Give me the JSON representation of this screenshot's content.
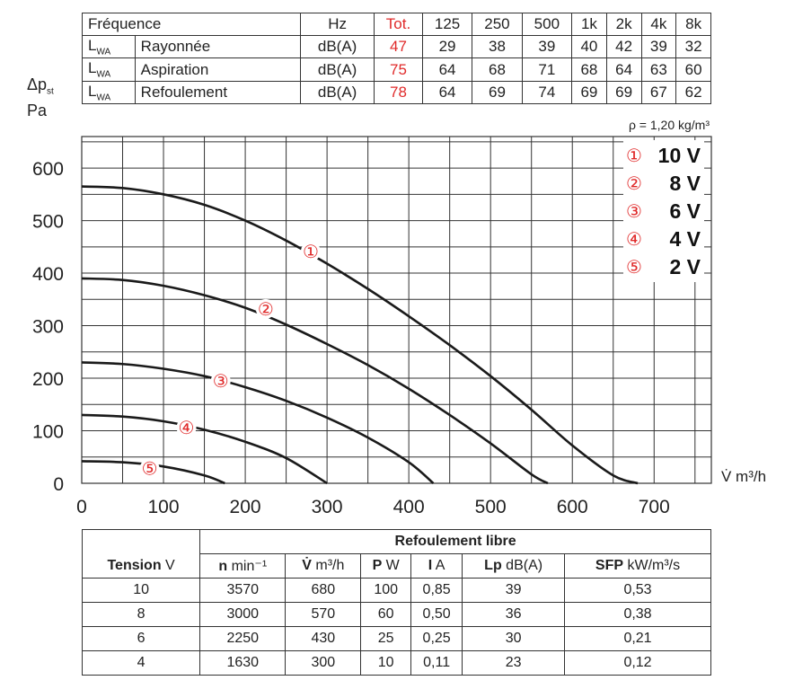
{
  "top_table": {
    "header": {
      "label": "Fréquence",
      "unit": "Hz",
      "total": "Tot.",
      "bands": [
        "125",
        "250",
        "500",
        "1k",
        "2k",
        "4k",
        "8k"
      ]
    },
    "rows": [
      {
        "sym": "L",
        "sub": "WA",
        "name": "Rayonnée",
        "unit": "dB(A)",
        "total": "47",
        "values": [
          "29",
          "38",
          "39",
          "40",
          "42",
          "39",
          "32"
        ]
      },
      {
        "sym": "L",
        "sub": "WA",
        "name": "Aspiration",
        "unit": "dB(A)",
        "total": "75",
        "values": [
          "64",
          "68",
          "71",
          "68",
          "64",
          "63",
          "60"
        ]
      },
      {
        "sym": "L",
        "sub": "WA",
        "name": "Refoulement",
        "unit": "dB(A)",
        "total": "78",
        "values": [
          "64",
          "69",
          "74",
          "69",
          "69",
          "67",
          "62"
        ]
      }
    ]
  },
  "y_unit": {
    "symbol": "Δp",
    "sub": "st",
    "unit": "Pa"
  },
  "density_note": "ρ = 1,20 kg/m³",
  "chart_data": {
    "type": "line",
    "xlabel": "V̇ m³/h",
    "ylabel": "Δpst Pa",
    "xlim": [
      0,
      770
    ],
    "ylim": [
      0,
      660
    ],
    "x_ticks": [
      0,
      100,
      200,
      300,
      400,
      500,
      600,
      700
    ],
    "y_ticks": [
      0,
      100,
      200,
      300,
      400,
      500,
      600
    ],
    "grid": true,
    "legend_position": "top-right",
    "series": [
      {
        "name": "10 V",
        "marker": "①",
        "x": [
          0,
          50,
          100,
          150,
          200,
          250,
          300,
          350,
          400,
          450,
          500,
          550,
          600,
          650,
          680
        ],
        "y": [
          565,
          562,
          550,
          530,
          500,
          462,
          418,
          370,
          318,
          263,
          204,
          140,
          72,
          15,
          0
        ]
      },
      {
        "name": "8 V",
        "marker": "②",
        "x": [
          0,
          50,
          100,
          150,
          200,
          250,
          300,
          350,
          400,
          450,
          500,
          550,
          570
        ],
        "y": [
          390,
          387,
          376,
          358,
          334,
          302,
          265,
          225,
          180,
          130,
          76,
          17,
          0
        ]
      },
      {
        "name": "6 V",
        "marker": "③",
        "x": [
          0,
          50,
          100,
          150,
          200,
          250,
          300,
          350,
          400,
          430
        ],
        "y": [
          230,
          227,
          218,
          204,
          183,
          157,
          125,
          87,
          40,
          0
        ]
      },
      {
        "name": "4 V",
        "marker": "④",
        "x": [
          0,
          50,
          100,
          150,
          200,
          250,
          300
        ],
        "y": [
          130,
          127,
          118,
          102,
          79,
          48,
          0
        ]
      },
      {
        "name": "2 V",
        "marker": "⑤",
        "x": [
          0,
          50,
          100,
          150,
          175
        ],
        "y": [
          42,
          40,
          32,
          15,
          0
        ]
      }
    ]
  },
  "bottom_table": {
    "title": "Refoulement libre",
    "columns": [
      {
        "bold": "Tension",
        "unit": " V"
      },
      {
        "bold": "n",
        "unit": " min⁻¹"
      },
      {
        "bold": "V̇",
        "unit": " m³/h"
      },
      {
        "bold": "P",
        "unit": " W"
      },
      {
        "bold": "I",
        "unit": " A"
      },
      {
        "bold": "Lp",
        "unit": " dB(A)"
      },
      {
        "bold": "SFP",
        "unit": " kW/m³/s"
      }
    ],
    "rows": [
      [
        "10",
        "3570",
        "680",
        "100",
        "0,85",
        "39",
        "0,53"
      ],
      [
        "8",
        "3000",
        "570",
        "60",
        "0,50",
        "36",
        "0,38"
      ],
      [
        "6",
        "2250",
        "430",
        "25",
        "0,25",
        "30",
        "0,21"
      ],
      [
        "4",
        "1630",
        "300",
        "10",
        "0,11",
        "23",
        "0,12"
      ]
    ]
  },
  "colors": {
    "accent": "#e02a2a",
    "curve": "#1a1a1a",
    "grid": "#333333"
  }
}
